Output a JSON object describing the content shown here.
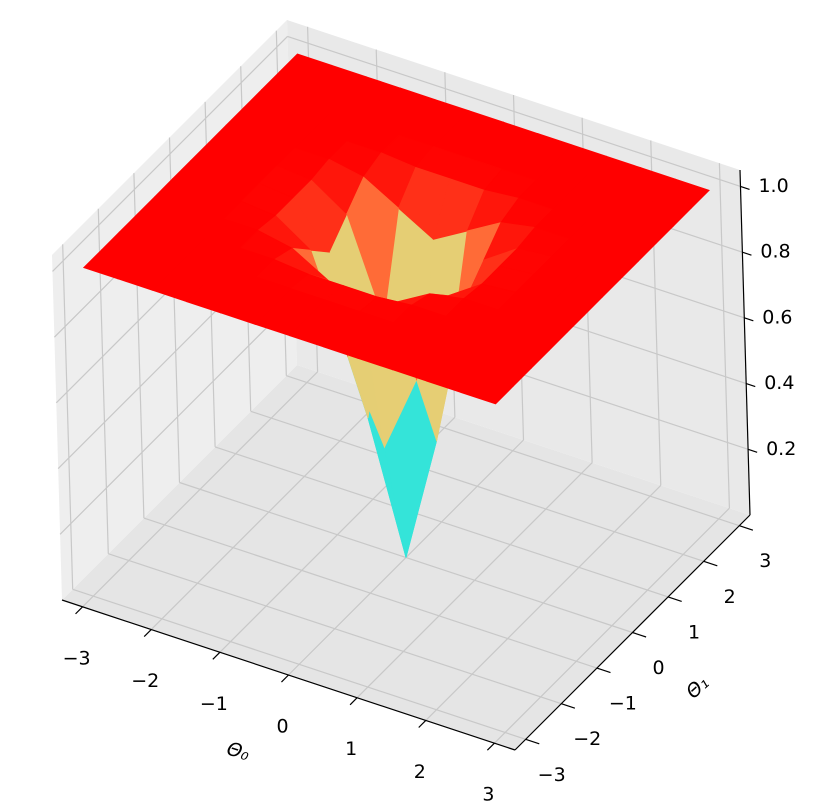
{
  "chart_data": {
    "type": "surface3d",
    "xlabel": "Θ₀",
    "ylabel": "Θ₁",
    "colormap": "rainbow",
    "x": [
      -3,
      -2.5,
      -2,
      -1.5,
      -1,
      -0.5,
      0,
      0.5,
      1,
      1.5,
      2,
      2.5,
      3
    ],
    "y": [
      -3,
      -2.5,
      -2,
      -1.5,
      -1,
      -0.5,
      0,
      0.5,
      1,
      1.5,
      2,
      2.5,
      3
    ],
    "z": [
      [
        1,
        1,
        1,
        1,
        1,
        1,
        1,
        1,
        1,
        1,
        1,
        1,
        1
      ],
      [
        1,
        1,
        1,
        1,
        1,
        1,
        1,
        1,
        1,
        1,
        1,
        1,
        1
      ],
      [
        1,
        1,
        1,
        1,
        1,
        1,
        1,
        1,
        1,
        1,
        1,
        1,
        1
      ],
      [
        1,
        1,
        1,
        1,
        1,
        0.99,
        0.99,
        0.99,
        1,
        1,
        1,
        1,
        1
      ],
      [
        1,
        1,
        1,
        1,
        0.98,
        0.92,
        0.86,
        0.92,
        0.98,
        1,
        1,
        1,
        1
      ],
      [
        1,
        1,
        1,
        0.99,
        0.92,
        0.63,
        0.39,
        0.63,
        0.92,
        0.99,
        1,
        1,
        1
      ],
      [
        1,
        1,
        1,
        0.99,
        0.86,
        0.39,
        0,
        0.39,
        0.86,
        0.99,
        1,
        1,
        1
      ],
      [
        1,
        1,
        1,
        0.99,
        0.92,
        0.63,
        0.39,
        0.63,
        0.92,
        0.99,
        1,
        1,
        1
      ],
      [
        1,
        1,
        1,
        1,
        0.98,
        0.92,
        0.86,
        0.92,
        0.98,
        1,
        1,
        1,
        1
      ],
      [
        1,
        1,
        1,
        1,
        1,
        0.99,
        0.99,
        0.99,
        1,
        1,
        1,
        1,
        1
      ],
      [
        1,
        1,
        1,
        1,
        1,
        1,
        1,
        1,
        1,
        1,
        1,
        1,
        1
      ],
      [
        1,
        1,
        1,
        1,
        1,
        1,
        1,
        1,
        1,
        1,
        1,
        1,
        1
      ],
      [
        1,
        1,
        1,
        1,
        1,
        1,
        1,
        1,
        1,
        1,
        1,
        1,
        1
      ]
    ],
    "xlim": [
      -3.3,
      3.3
    ],
    "ylim": [
      -3.3,
      3.3
    ],
    "zlim": [
      0,
      1.05
    ],
    "xticks": [
      {
        "value": -3,
        "label": "−3"
      },
      {
        "value": -2,
        "label": "−2"
      },
      {
        "value": -1,
        "label": "−1"
      },
      0,
      1,
      2,
      3
    ],
    "yticks": [
      {
        "value": -3,
        "label": "−3"
      },
      {
        "value": -2,
        "label": "−2"
      },
      {
        "value": -1,
        "label": "−1"
      },
      0,
      1,
      2,
      3
    ],
    "zticks": [
      0.2,
      0.4,
      0.6,
      0.8,
      {
        "value": 1,
        "label": "1.0"
      }
    ],
    "grid": true
  }
}
